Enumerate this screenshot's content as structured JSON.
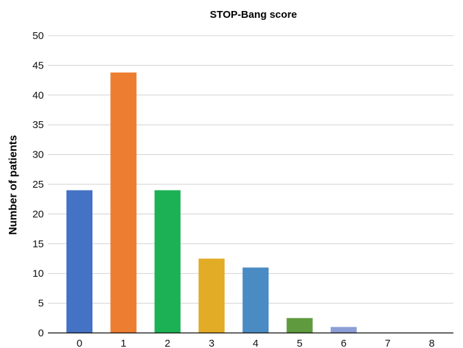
{
  "chart_data": {
    "type": "bar",
    "title": "STOP-Bang score",
    "xlabel": "",
    "ylabel": "Number of patients",
    "categories": [
      "0",
      "1",
      "2",
      "3",
      "4",
      "5",
      "6",
      "7",
      "8"
    ],
    "values": [
      24,
      43.8,
      24,
      12.5,
      11,
      2.5,
      1,
      0,
      0
    ],
    "ylim": [
      0,
      50
    ],
    "yticks": [
      0,
      5,
      10,
      15,
      20,
      25,
      30,
      35,
      40,
      45,
      50
    ],
    "grid": true,
    "legend": "none",
    "colors": [
      "#4472c4",
      "#ed7d31",
      "#1db155",
      "#e3ac27",
      "#4a8bc4",
      "#5f9a3e",
      "#8b9ed6",
      "#4472c4",
      "#4472c4"
    ]
  }
}
